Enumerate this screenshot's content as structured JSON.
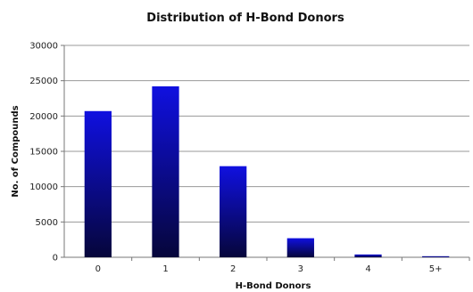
{
  "chart_data": {
    "type": "bar",
    "title": "Distribution of H-Bond Donors",
    "xlabel": "H-Bond Donors",
    "ylabel": "No. of Compounds",
    "categories": [
      "0",
      "1",
      "2",
      "3",
      "4",
      "5+"
    ],
    "values": [
      20700,
      24200,
      12900,
      2700,
      400,
      150
    ],
    "ylim": [
      0,
      30000
    ],
    "yticks": [
      0,
      5000,
      10000,
      15000,
      20000,
      25000,
      30000
    ],
    "grid": true,
    "legend": "none",
    "colors": {
      "bar_top": "#1010e0",
      "bar_bottom": "#06063a",
      "grid": "#9a9a9a",
      "axis": "#777777"
    }
  }
}
